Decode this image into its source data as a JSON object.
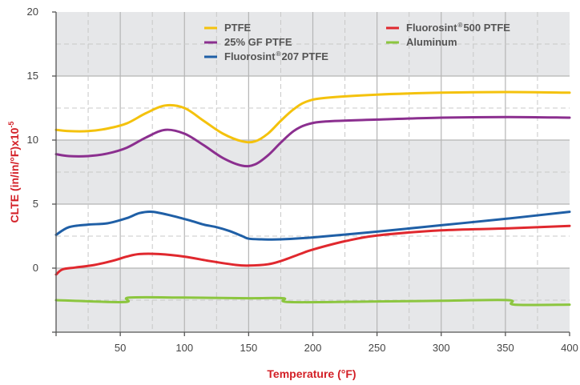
{
  "chart_data": {
    "type": "line",
    "xlabel": "Temperature (°F)",
    "ylabel": {
      "main": "CLTE (in/in/°F)x10",
      "exponent": "-5"
    },
    "xlim": [
      0,
      400
    ],
    "ylim": [
      -5,
      20
    ],
    "xticks": [
      50,
      100,
      150,
      200,
      250,
      300,
      350,
      400
    ],
    "yticks": [
      0,
      5,
      10,
      15,
      20
    ],
    "grid": true,
    "legend_position": "top",
    "band_color": "#e6e7e9",
    "axis_color": "#555555",
    "title_color": "#d32027",
    "series": [
      {
        "name": "PTFE",
        "color": "#f4c20d",
        "x": [
          0,
          10,
          25,
          40,
          55,
          70,
          85,
          100,
          115,
          130,
          145,
          155,
          165,
          175,
          185,
          195,
          210,
          250,
          300,
          350,
          400
        ],
        "y": [
          10.8,
          10.7,
          10.7,
          10.9,
          11.3,
          12.1,
          12.7,
          12.5,
          11.5,
          10.5,
          9.9,
          9.9,
          10.5,
          11.5,
          12.4,
          13.0,
          13.3,
          13.55,
          13.7,
          13.75,
          13.7
        ]
      },
      {
        "name": "25% GF PTFE",
        "color": "#8b2f8f",
        "x": [
          0,
          10,
          25,
          40,
          55,
          70,
          85,
          100,
          115,
          130,
          145,
          155,
          165,
          175,
          185,
          195,
          210,
          250,
          300,
          350,
          400
        ],
        "y": [
          8.9,
          8.75,
          8.75,
          8.95,
          9.4,
          10.2,
          10.8,
          10.5,
          9.6,
          8.6,
          8.0,
          8.1,
          8.8,
          9.8,
          10.7,
          11.2,
          11.45,
          11.6,
          11.75,
          11.8,
          11.75
        ]
      },
      {
        "name": "Fluorosint®207 PTFE",
        "name_parts": {
          "main": "Fluorosint",
          "sup": "®",
          "rest": "207 PTFE"
        },
        "color": "#1f5fa6",
        "x": [
          0,
          10,
          25,
          40,
          55,
          65,
          75,
          90,
          105,
          115,
          125,
          135,
          145,
          150,
          160,
          175,
          200,
          250,
          300,
          350,
          400
        ],
        "y": [
          2.6,
          3.2,
          3.4,
          3.5,
          3.9,
          4.3,
          4.4,
          4.1,
          3.7,
          3.4,
          3.2,
          2.9,
          2.5,
          2.3,
          2.25,
          2.25,
          2.4,
          2.85,
          3.35,
          3.85,
          4.4
        ]
      },
      {
        "name": "Fluorosint®500 PTFE",
        "name_parts": {
          "main": "Fluorosint",
          "sup": "®",
          "rest": "500 PTFE"
        },
        "color": "#e0282e",
        "x": [
          0,
          5,
          15,
          30,
          45,
          55,
          65,
          80,
          100,
          120,
          140,
          150,
          165,
          175,
          190,
          200,
          225,
          250,
          300,
          350,
          400
        ],
        "y": [
          -0.5,
          -0.1,
          0.05,
          0.25,
          0.6,
          0.9,
          1.1,
          1.1,
          0.9,
          0.55,
          0.25,
          0.2,
          0.3,
          0.55,
          1.1,
          1.45,
          2.1,
          2.55,
          2.95,
          3.1,
          3.3
        ]
      },
      {
        "name": "Aluminum",
        "color": "#8cc63f",
        "x": [
          0,
          53,
          57,
          100,
          150,
          177,
          182,
          250,
          300,
          352,
          357,
          400
        ],
        "y": [
          -2.5,
          -2.65,
          -2.3,
          -2.3,
          -2.35,
          -2.35,
          -2.65,
          -2.6,
          -2.55,
          -2.5,
          -2.85,
          -2.85
        ]
      }
    ]
  }
}
